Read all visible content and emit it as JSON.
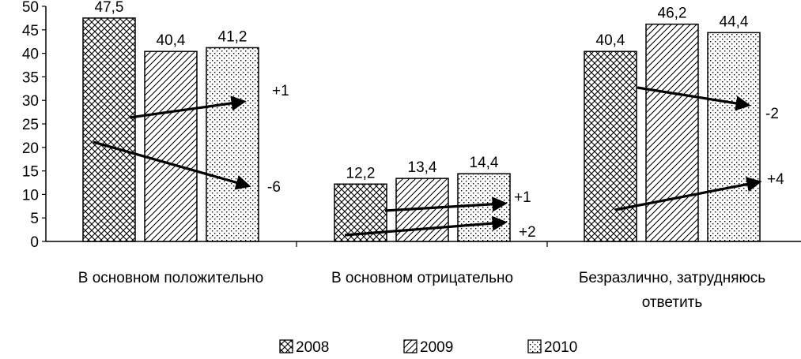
{
  "chart_data": {
    "type": "bar",
    "categories": [
      [
        "В основном положительно"
      ],
      [
        "В основном отрицательно"
      ],
      [
        "Безразлично, затрудняюсь",
        "ответить"
      ]
    ],
    "series": [
      {
        "name": "2008",
        "values": [
          47.5,
          12.2,
          40.4
        ],
        "labels": [
          "47,5",
          "12,2",
          "40,4"
        ],
        "pattern": "crosshatch"
      },
      {
        "name": "2009",
        "values": [
          40.4,
          13.4,
          46.2
        ],
        "labels": [
          "40,4",
          "13,4",
          "46,2"
        ],
        "pattern": "diagonal"
      },
      {
        "name": "2010",
        "values": [
          41.2,
          14.4,
          44.4
        ],
        "labels": [
          "41,2",
          "14,4",
          "44,4"
        ],
        "pattern": "dots"
      }
    ],
    "y_ticks": [
      "0",
      "5",
      "10",
      "15",
      "20",
      "25",
      "30",
      "35",
      "40",
      "45",
      "50"
    ],
    "ylim": [
      0,
      50
    ],
    "grid": false,
    "legend_position": "bottom",
    "change_annotations": [
      {
        "category": 0,
        "from": 2008,
        "to": 2010,
        "label": "-6"
      },
      {
        "category": 0,
        "from": 2009,
        "to": 2010,
        "label": "+1"
      },
      {
        "category": 1,
        "from": 2008,
        "to": 2010,
        "label": "+2"
      },
      {
        "category": 1,
        "from": 2009,
        "to": 2010,
        "label": "+1"
      },
      {
        "category": 2,
        "from": 2008,
        "to": 2010,
        "label": "+4"
      },
      {
        "category": 2,
        "from": 2009,
        "to": 2010,
        "label": "-2"
      }
    ]
  }
}
